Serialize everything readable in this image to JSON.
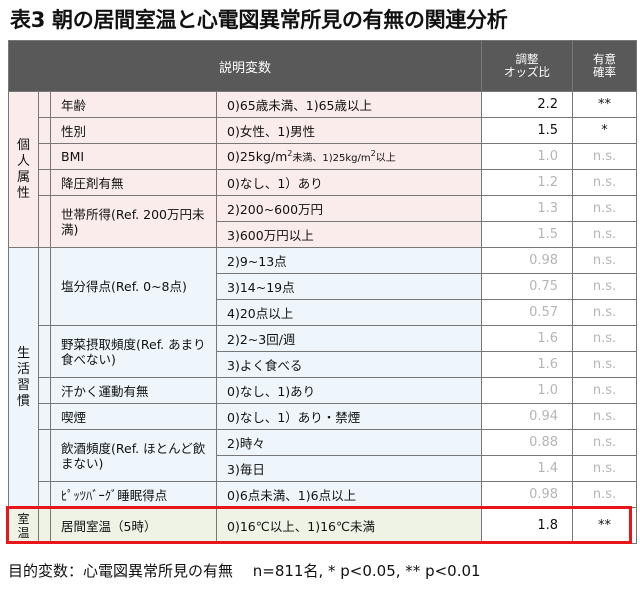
{
  "title": "表3 朝の居間室温と心電図異常所見の有無の関連分析",
  "header": {
    "explanatory": "説明変数",
    "odds_line1": "調整",
    "odds_line2": "オッズ比",
    "sig_line1": "有意",
    "sig_line2": "確率"
  },
  "categories": {
    "personal": "個人属性",
    "lifestyle": "生活習慣",
    "room": "室温"
  },
  "rows": [
    {
      "var": "年齢",
      "level": "0)65歳未満、1)65歳以上",
      "or": "2.2",
      "sig": "**"
    },
    {
      "var": "性別",
      "level": "0)女性、1)男性",
      "or": "1.5",
      "sig": "*"
    },
    {
      "var": "BMI",
      "level_a": "0)25kg/m",
      "level_b": "2",
      "level_c": "未満、1)25kg/m",
      "level_d": "2",
      "level_e": "以上",
      "or": "1.0",
      "sig": "n.s."
    },
    {
      "var": "降圧剤有無",
      "level": "0)なし、1）あり",
      "or": "1.2",
      "sig": "n.s."
    },
    {
      "var": "世帯所得(Ref. 200万円未満)",
      "level": "2)200~600万円",
      "or": "1.3",
      "sig": "n.s."
    },
    {
      "var": "",
      "level": "3)600万円以上",
      "or": "1.5",
      "sig": "n.s."
    },
    {
      "var": "塩分得点(Ref. 0~8点)",
      "level": "2)9~13点",
      "or": "0.98",
      "sig": "n.s."
    },
    {
      "var": "",
      "level": "3)14~19点",
      "or": "0.75",
      "sig": "n.s."
    },
    {
      "var": "",
      "level": "4)20点以上",
      "or": "0.57",
      "sig": "n.s."
    },
    {
      "var": "野菜摂取頻度(Ref. あまり食べない)",
      "level": "2)2~3回/週",
      "or": "1.6",
      "sig": "n.s."
    },
    {
      "var": "",
      "level": "3)よく食べる",
      "or": "1.6",
      "sig": "n.s."
    },
    {
      "var": "汗かく運動有無",
      "level": "0)なし、1)あり",
      "or": "1.0",
      "sig": "n.s."
    },
    {
      "var": "喫煙",
      "level": "0)なし、1）あり・禁煙",
      "or": "0.94",
      "sig": "n.s."
    },
    {
      "var": "飲酒頻度(Ref. ほとんど飲まない)",
      "level": "2)時々",
      "or": "0.88",
      "sig": "n.s."
    },
    {
      "var": "",
      "level": "3)毎日",
      "or": "1.4",
      "sig": "n.s."
    },
    {
      "var": "ﾋﾟｯﾂﾊﾞｰｸﾞ睡眠得点",
      "level": "0)6点未満、1)6点以上",
      "or": "0.98",
      "sig": "n.s."
    },
    {
      "var": "居間室温（5時）",
      "level": "0)16℃以上、1)16℃未満",
      "or": "1.8",
      "sig": "**"
    }
  ],
  "footer": "目的変数：心電図異常所見の有無　 n=811名, * p<0.05, ** p<0.01"
}
